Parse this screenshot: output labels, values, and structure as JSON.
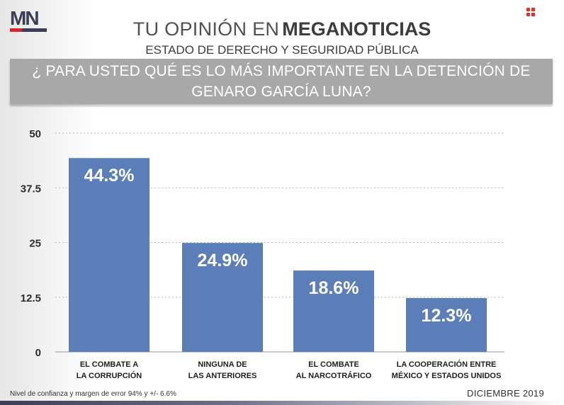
{
  "header": {
    "logo_text": "MN",
    "title_light": "TU OPINIÓN EN",
    "title_bold": "MEGANOTICIAS",
    "subtitle": "ESTADO DE DERECHO Y SEGURIDAD PÚBLICA",
    "question": "¿ PARA USTED QUÉ ES LO MÁS IMPORTANTE EN LA DETENCIÓN DE GENARO GARCÍA LUNA?"
  },
  "colors": {
    "bar": "#5b7eb8",
    "accent_red": "#d9262d",
    "navy": "#3a3f55",
    "question_bg": "#a8a8a8"
  },
  "chart_data": {
    "type": "bar",
    "categories": [
      [
        "EL COMBATE A",
        "LA CORRUPCIÓN"
      ],
      [
        "NINGUNA DE",
        "LAS ANTERIORES"
      ],
      [
        "EL COMBATE",
        "AL NARCOTRÁFICO"
      ],
      [
        "LA COOPERACIÓN ENTRE",
        "MÉXICO Y ESTADOS UNIDOS"
      ]
    ],
    "values": [
      44.3,
      24.9,
      18.6,
      12.3
    ],
    "value_labels": [
      "44.3%",
      "24.9%",
      "18.6%",
      "12.3%"
    ],
    "yticks": [
      "0",
      "12.5",
      "25",
      "37.5",
      "50"
    ],
    "ytick_values": [
      0,
      12.5,
      25,
      37.5,
      50
    ],
    "ylim": [
      0,
      50
    ],
    "grid": true
  },
  "footer": {
    "note": "Nivel de confianza y margen de error 94% y +/- 6.6%",
    "date": "DICIEMBRE 2019"
  }
}
